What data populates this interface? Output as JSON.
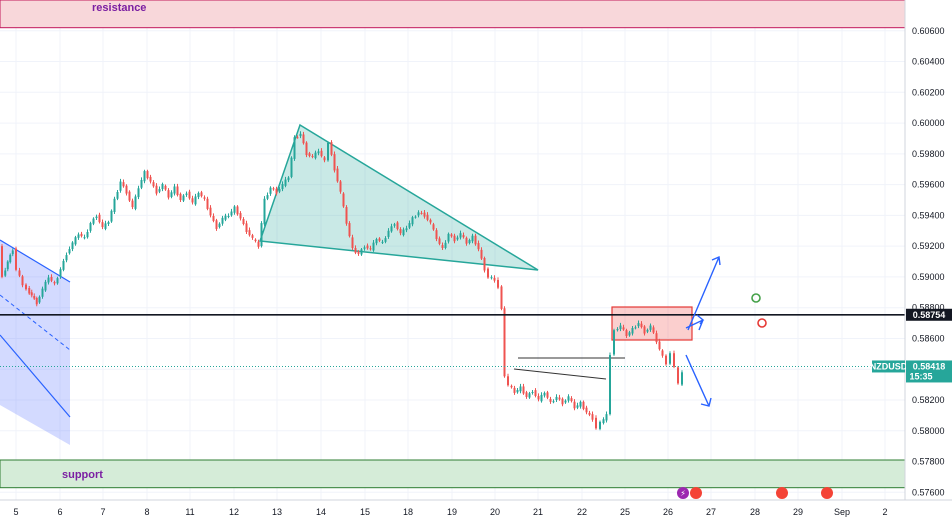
{
  "chart_data": {
    "type": "candlestick",
    "symbol": "NZDUSD",
    "last_price": "0.58418",
    "countdown": "15:35",
    "level_price": "0.58754",
    "y_ticks": [
      "0.60600",
      "0.60400",
      "0.60200",
      "0.60000",
      "0.59800",
      "0.59600",
      "0.59400",
      "0.59200",
      "0.59000",
      "0.58800",
      "0.58600",
      "0.58400",
      "0.58200",
      "0.58000",
      "0.57800",
      "0.57600"
    ],
    "x_ticks": [
      "5",
      "6",
      "7",
      "8",
      "11",
      "12",
      "13",
      "14",
      "15",
      "18",
      "19",
      "20",
      "21",
      "22",
      "25",
      "26",
      "27",
      "28",
      "29",
      "Sep",
      "2"
    ],
    "ylim": [
      0.5755,
      0.608
    ],
    "zones": {
      "resistance": {
        "label": "resistance",
        "from": 0.6062,
        "to": 0.608
      },
      "support": {
        "label": "support",
        "from": 0.5763,
        "to": 0.5781
      }
    },
    "path": [
      [
        0,
        0.592
      ],
      [
        4,
        0.59
      ],
      [
        9,
        0.591
      ],
      [
        14,
        0.5918
      ],
      [
        18,
        0.5905
      ],
      [
        24,
        0.5895
      ],
      [
        28,
        0.5892
      ],
      [
        33,
        0.5888
      ],
      [
        38,
        0.5883
      ],
      [
        44,
        0.5892
      ],
      [
        50,
        0.59
      ],
      [
        56,
        0.5895
      ],
      [
        62,
        0.5905
      ],
      [
        68,
        0.5915
      ],
      [
        74,
        0.5922
      ],
      [
        80,
        0.5928
      ],
      [
        86,
        0.5925
      ],
      [
        92,
        0.5935
      ],
      [
        98,
        0.594
      ],
      [
        104,
        0.5932
      ],
      [
        110,
        0.5936
      ],
      [
        116,
        0.595
      ],
      [
        122,
        0.5962
      ],
      [
        128,
        0.5955
      ],
      [
        134,
        0.5945
      ],
      [
        140,
        0.5958
      ],
      [
        146,
        0.5968
      ],
      [
        152,
        0.5962
      ],
      [
        158,
        0.5955
      ],
      [
        164,
        0.596
      ],
      [
        170,
        0.5952
      ],
      [
        176,
        0.5958
      ],
      [
        182,
        0.595
      ],
      [
        188,
        0.5955
      ],
      [
        194,
        0.5948
      ],
      [
        200,
        0.5955
      ],
      [
        206,
        0.595
      ],
      [
        212,
        0.594
      ],
      [
        218,
        0.5932
      ],
      [
        224,
        0.5938
      ],
      [
        230,
        0.594
      ],
      [
        236,
        0.5945
      ],
      [
        242,
        0.5938
      ],
      [
        248,
        0.593
      ],
      [
        254,
        0.5925
      ],
      [
        260,
        0.592
      ],
      [
        266,
        0.595
      ],
      [
        272,
        0.5958
      ],
      [
        278,
        0.5955
      ],
      [
        284,
        0.596
      ],
      [
        290,
        0.5965
      ],
      [
        296,
        0.599
      ],
      [
        302,
        0.5993
      ],
      [
        308,
        0.598
      ],
      [
        314,
        0.5978
      ],
      [
        320,
        0.5982
      ],
      [
        326,
        0.5975
      ],
      [
        330,
        0.5988
      ],
      [
        336,
        0.597
      ],
      [
        342,
        0.5955
      ],
      [
        348,
        0.5935
      ],
      [
        354,
        0.5918
      ],
      [
        360,
        0.5915
      ],
      [
        366,
        0.592
      ],
      [
        372,
        0.5918
      ],
      [
        378,
        0.5925
      ],
      [
        384,
        0.5922
      ],
      [
        390,
        0.593
      ],
      [
        396,
        0.5935
      ],
      [
        402,
        0.5928
      ],
      [
        408,
        0.5932
      ],
      [
        414,
        0.5938
      ],
      [
        420,
        0.5942
      ],
      [
        426,
        0.594
      ],
      [
        432,
        0.5935
      ],
      [
        438,
        0.5925
      ],
      [
        444,
        0.5918
      ],
      [
        450,
        0.5928
      ],
      [
        456,
        0.5924
      ],
      [
        462,
        0.5928
      ],
      [
        468,
        0.5922
      ],
      [
        474,
        0.5926
      ],
      [
        480,
        0.5918
      ],
      [
        486,
        0.5905
      ],
      [
        490,
        0.59
      ],
      [
        496,
        0.5898
      ],
      [
        500,
        0.5893
      ],
      [
        503,
        0.588
      ],
      [
        506,
        0.5835
      ],
      [
        510,
        0.583
      ],
      [
        516,
        0.5825
      ],
      [
        522,
        0.5828
      ],
      [
        528,
        0.5822
      ],
      [
        534,
        0.5826
      ],
      [
        540,
        0.582
      ],
      [
        546,
        0.5825
      ],
      [
        552,
        0.5818
      ],
      [
        558,
        0.5822
      ],
      [
        564,
        0.5818
      ],
      [
        570,
        0.5822
      ],
      [
        576,
        0.5815
      ],
      [
        582,
        0.5818
      ],
      [
        588,
        0.5812
      ],
      [
        594,
        0.5808
      ],
      [
        598,
        0.5802
      ],
      [
        602,
        0.5805
      ],
      [
        608,
        0.581
      ],
      [
        612,
        0.585
      ],
      [
        616,
        0.5865
      ],
      [
        622,
        0.5868
      ],
      [
        628,
        0.5862
      ],
      [
        634,
        0.5866
      ],
      [
        640,
        0.587
      ],
      [
        646,
        0.5864
      ],
      [
        652,
        0.5868
      ],
      [
        658,
        0.5858
      ],
      [
        664,
        0.5848
      ],
      [
        668,
        0.5844
      ],
      [
        672,
        0.585
      ],
      [
        676,
        0.5842
      ],
      [
        680,
        0.583
      ],
      [
        684,
        0.5838
      ]
    ]
  }
}
